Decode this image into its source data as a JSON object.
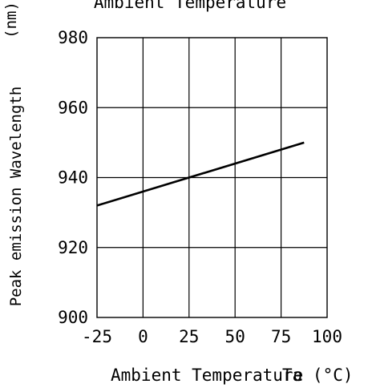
{
  "chart_data": {
    "type": "line",
    "title": "Ambient Temperature",
    "xlabel": "Ambient Temperature",
    "xunit_label": "Ta (°C)",
    "ylabel_main": "Peak emission Wavelength",
    "ylabel_unit": "(nm)",
    "xlim": [
      -25,
      100
    ],
    "ylim": [
      900,
      980
    ],
    "x_ticks": [
      "-25",
      "0",
      "25",
      "50",
      "75",
      "100"
    ],
    "x_tick_values": [
      -25,
      0,
      25,
      50,
      75,
      100
    ],
    "y_ticks": [
      "980",
      "960",
      "940",
      "920",
      "900"
    ],
    "y_tick_values": [
      980,
      960,
      940,
      920,
      900
    ],
    "grid": true,
    "series": [
      {
        "x": [
          -25,
          87.5
        ],
        "y": [
          932,
          950
        ],
        "color": "#000000"
      }
    ]
  }
}
